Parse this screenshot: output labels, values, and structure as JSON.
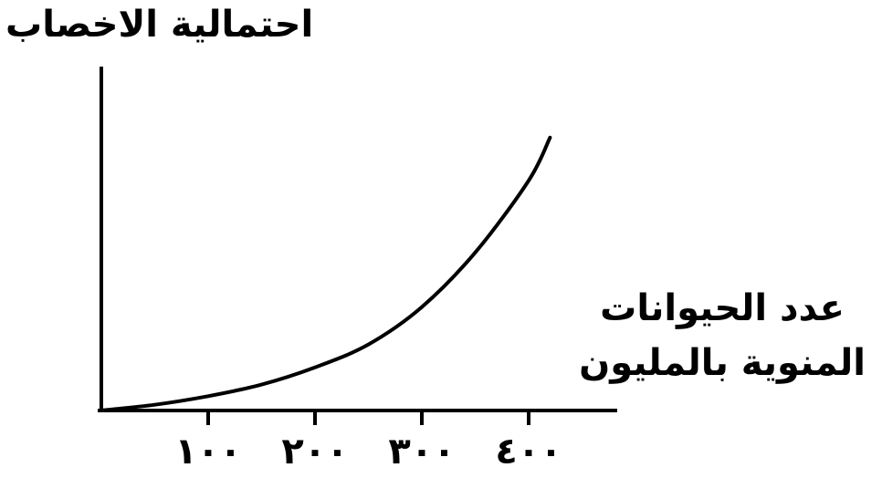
{
  "chart_data": {
    "type": "line",
    "ylabel": "احتمالية الاخصاب",
    "xlabel_lines": [
      "عدد الحيوانات",
      "المنوية بالمليون"
    ],
    "x_ticks": [
      100,
      200,
      300,
      400
    ],
    "x_tick_labels": [
      "١٠٠",
      "٢٠٠",
      "٣٠٠",
      "٤٠٠"
    ],
    "xlim": [
      0,
      460
    ],
    "ylim": [
      0,
      1
    ],
    "series": [
      {
        "x": [
          0,
          50,
          100,
          150,
          200,
          250,
          300,
          350,
          400,
          420
        ],
        "y": [
          0,
          0.02,
          0.05,
          0.09,
          0.15,
          0.23,
          0.36,
          0.55,
          0.8,
          0.95
        ]
      }
    ],
    "grid": false,
    "legend": "none"
  }
}
